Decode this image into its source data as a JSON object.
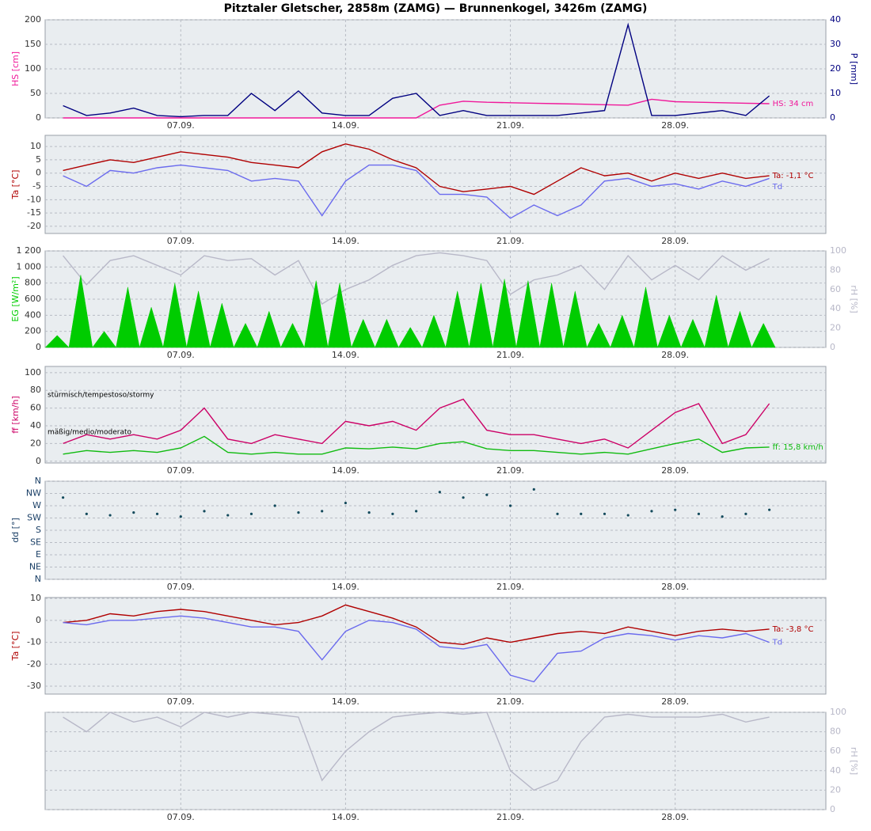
{
  "title": "Pitztaler Gletscher, 2858m (ZAMG) — Brunnenkogel, 3426m (ZAMG)",
  "chart_data": [
    {
      "type": "line",
      "xlim": [
        1.24,
        34.4
      ],
      "xticks": [
        {
          "value": 7,
          "label": "07.09."
        },
        {
          "value": 14,
          "label": "14.09."
        },
        {
          "value": 21,
          "label": "21.09."
        },
        {
          "value": 28,
          "label": "28.09."
        }
      ],
      "x": [
        2,
        3,
        4,
        5,
        6,
        7,
        8,
        9,
        10,
        11,
        12,
        13,
        14,
        15,
        16,
        17,
        18,
        19,
        20,
        21,
        22,
        23,
        24,
        25,
        26,
        27,
        28,
        29,
        30,
        31,
        32
      ],
      "ylabel": "HS [cm]",
      "ylim": [
        0,
        200
      ],
      "yticks": [
        0,
        50,
        100,
        150,
        200
      ],
      "y2label": "P [mm]",
      "y2lim": [
        0,
        40
      ],
      "y2ticks": [
        0,
        10,
        20,
        30,
        40
      ],
      "grid": true,
      "series": [
        {
          "name": "HS: 34 cm",
          "color": "#f0189a",
          "values": [
            0,
            0,
            0,
            0,
            0,
            0,
            0,
            0,
            0,
            0,
            0,
            0,
            0,
            0,
            0,
            0,
            26,
            34,
            32,
            31,
            30,
            29,
            28,
            27,
            26,
            38,
            33,
            32,
            31,
            30,
            29
          ]
        },
        {
          "color": "#000080",
          "axis": "y2",
          "values": [
            5,
            1,
            2,
            4,
            1,
            0.5,
            1,
            1,
            10,
            3,
            11,
            2,
            1,
            1,
            8,
            10,
            1,
            3,
            1,
            1,
            1,
            1,
            2,
            3,
            38,
            1,
            1,
            2,
            3,
            1,
            9
          ]
        }
      ]
    },
    {
      "type": "line",
      "xlim": [
        1.24,
        34.4
      ],
      "xticks": [
        {
          "value": 7,
          "label": "07.09."
        },
        {
          "value": 14,
          "label": "14.09."
        },
        {
          "value": 21,
          "label": "21.09."
        },
        {
          "value": 28,
          "label": "28.09."
        }
      ],
      "x": [
        2,
        3,
        4,
        5,
        6,
        7,
        8,
        9,
        10,
        11,
        12,
        13,
        14,
        15,
        16,
        17,
        18,
        19,
        20,
        21,
        22,
        23,
        24,
        25,
        26,
        27,
        28,
        29,
        30,
        31,
        32
      ],
      "ylabel": "Ta [°C]",
      "ylim": [
        -22.7,
        14.2
      ],
      "yticks": [
        -20,
        -15,
        -10,
        -5,
        0,
        5,
        10
      ],
      "grid": true,
      "series": [
        {
          "name": "Ta: -1,1 °C",
          "color": "#b00000",
          "values": [
            1,
            3,
            5,
            4,
            6,
            8,
            7,
            6,
            4,
            3,
            2,
            8,
            11,
            9,
            5,
            2,
            -5,
            -7,
            -6,
            -5,
            -8,
            -3,
            2,
            -1,
            0,
            -3,
            0,
            -2,
            0,
            -2,
            -1
          ]
        },
        {
          "name": "Td",
          "color": "#6a6aee",
          "values": [
            -1,
            -5,
            1,
            0,
            2,
            3,
            2,
            1,
            -3,
            -2,
            -3,
            -16,
            -3,
            3,
            3,
            1,
            -8,
            -8,
            -9,
            -17,
            -12,
            -16,
            -12,
            -3,
            -2,
            -5,
            -4,
            -6,
            -3,
            -5,
            -2
          ]
        }
      ]
    },
    {
      "type": "line",
      "xlim": [
        1.24,
        34.4
      ],
      "xticks": [
        {
          "value": 7,
          "label": "07.09."
        },
        {
          "value": 14,
          "label": "14.09."
        },
        {
          "value": 21,
          "label": "21.09."
        },
        {
          "value": 28,
          "label": "28.09."
        }
      ],
      "x": [
        2,
        3,
        4,
        5,
        6,
        7,
        8,
        9,
        10,
        11,
        12,
        13,
        14,
        15,
        16,
        17,
        18,
        19,
        20,
        21,
        22,
        23,
        24,
        25,
        26,
        27,
        28,
        29,
        30,
        31,
        32
      ],
      "ylabel": "EG [W/m²]",
      "ylim": [
        0,
        1200
      ],
      "yticks": [
        0,
        200,
        400,
        600,
        800,
        {
          "value": 1000,
          "label": "1 000"
        },
        {
          "value": 1200,
          "label": "1 200"
        }
      ],
      "y2label": "rH [%]",
      "y2lim": [
        0,
        100
      ],
      "y2ticks": [
        0,
        20,
        40,
        60,
        80,
        100
      ],
      "grid": true,
      "series": [
        {
          "color": "#b8b8c8",
          "axis": "y2",
          "values": [
            95,
            65,
            90,
            95,
            85,
            75,
            95,
            90,
            92,
            75,
            90,
            45,
            60,
            70,
            85,
            95,
            98,
            95,
            90,
            55,
            70,
            75,
            85,
            60,
            95,
            70,
            85,
            70,
            95,
            80,
            92
          ]
        },
        {
          "type": "area",
          "color": "#00cc00",
          "x": [
            1.25,
            1.75,
            2.25,
            2.75,
            3.25,
            3.75,
            4.25,
            4.75,
            5.25,
            5.75,
            6.25,
            6.75,
            7.25,
            7.75,
            8.25,
            8.75,
            9.25,
            9.75,
            10.25,
            10.75,
            11.25,
            11.75,
            12.25,
            12.75,
            13.25,
            13.75,
            14.25,
            14.75,
            15.25,
            15.75,
            16.25,
            16.75,
            17.25,
            17.75,
            18.25,
            18.75,
            19.25,
            19.75,
            20.25,
            20.75,
            21.25,
            21.75,
            22.25,
            22.75,
            23.25,
            23.75,
            24.25,
            24.75,
            25.25,
            25.75,
            26.25,
            26.75,
            27.25,
            27.75,
            28.25,
            28.75,
            29.25,
            29.75,
            30.25,
            30.75,
            31.25,
            31.75,
            32.25
          ],
          "values": [
            0,
            150,
            0,
            900,
            0,
            200,
            0,
            750,
            0,
            500,
            0,
            800,
            0,
            700,
            0,
            550,
            0,
            300,
            0,
            450,
            0,
            300,
            0,
            830,
            0,
            800,
            0,
            350,
            0,
            350,
            0,
            250,
            0,
            400,
            0,
            700,
            0,
            800,
            0,
            850,
            0,
            830,
            0,
            800,
            0,
            700,
            0,
            300,
            0,
            400,
            0,
            750,
            0,
            400,
            0,
            350,
            0,
            650,
            0,
            450,
            0,
            300,
            0
          ]
        }
      ]
    },
    {
      "type": "line",
      "xlim": [
        1.24,
        34.4
      ],
      "xticks": [
        {
          "value": 7,
          "label": "07.09."
        },
        {
          "value": 14,
          "label": "14.09."
        },
        {
          "value": 21,
          "label": "21.09."
        },
        {
          "value": 28,
          "label": "28.09."
        }
      ],
      "x": [
        2,
        3,
        4,
        5,
        6,
        7,
        8,
        9,
        10,
        11,
        12,
        13,
        14,
        15,
        16,
        17,
        18,
        19,
        20,
        21,
        22,
        23,
        24,
        25,
        26,
        27,
        28,
        29,
        30,
        31,
        32
      ],
      "ylabel": "ff [km/h]",
      "ylim": [
        -2,
        107
      ],
      "yticks": [
        0,
        20,
        40,
        60,
        80,
        100
      ],
      "grid": true,
      "annotations": [
        "stürmisch/tempestoso/stormy",
        "mäßig/medio/moderato"
      ],
      "series": [
        {
          "color": "#cc0066",
          "values": [
            20,
            30,
            25,
            30,
            25,
            35,
            60,
            25,
            20,
            30,
            25,
            20,
            45,
            40,
            45,
            35,
            60,
            70,
            35,
            30,
            30,
            25,
            20,
            25,
            15,
            35,
            55,
            65,
            20,
            30,
            65
          ]
        },
        {
          "name": "ff: 15,8 km/h",
          "color": "#10bb10",
          "values": [
            8,
            12,
            10,
            12,
            10,
            15,
            28,
            10,
            8,
            10,
            8,
            8,
            15,
            14,
            16,
            14,
            20,
            22,
            14,
            12,
            12,
            10,
            8,
            10,
            8,
            14,
            20,
            25,
            10,
            15,
            16
          ]
        }
      ]
    },
    {
      "type": "scatter",
      "xlim": [
        1.24,
        34.4
      ],
      "xticks": [
        {
          "value": 7,
          "label": "07.09."
        },
        {
          "value": 14,
          "label": "14.09."
        },
        {
          "value": 21,
          "label": "21.09."
        },
        {
          "value": 28,
          "label": "28.09."
        }
      ],
      "x": [
        2,
        3,
        4,
        5,
        6,
        7,
        8,
        9,
        10,
        11,
        12,
        13,
        14,
        15,
        16,
        17,
        18,
        19,
        20,
        21,
        22,
        23,
        24,
        25,
        26,
        27,
        28,
        29,
        30,
        31,
        32
      ],
      "ylabel": "dd [°]",
      "ylim": [
        0,
        360
      ],
      "yticks": [
        {
          "value": 0,
          "label": "N"
        },
        {
          "value": 45,
          "label": "NE"
        },
        {
          "value": 90,
          "label": "E"
        },
        {
          "value": 135,
          "label": "SE"
        },
        {
          "value": 180,
          "label": "S"
        },
        {
          "value": 225,
          "label": "SW"
        },
        {
          "value": 270,
          "label": "W"
        },
        {
          "value": 315,
          "label": "NW"
        },
        {
          "value": 360,
          "label": "N"
        }
      ],
      "grid": true,
      "series": [
        {
          "color": "#134a5c",
          "values": [
            300,
            240,
            235,
            245,
            240,
            230,
            250,
            235,
            240,
            270,
            245,
            250,
            280,
            245,
            240,
            250,
            320,
            300,
            310,
            270,
            330,
            240,
            240,
            240,
            235,
            250,
            255,
            240,
            230,
            240,
            255
          ]
        }
      ]
    },
    {
      "type": "line",
      "xlim": [
        1.24,
        34.4
      ],
      "xticks": [
        {
          "value": 7,
          "label": "07.09."
        },
        {
          "value": 14,
          "label": "14.09."
        },
        {
          "value": 21,
          "label": "21.09."
        },
        {
          "value": 28,
          "label": "28.09."
        }
      ],
      "x": [
        2,
        3,
        4,
        5,
        6,
        7,
        8,
        9,
        10,
        11,
        12,
        13,
        14,
        15,
        16,
        17,
        18,
        19,
        20,
        21,
        22,
        23,
        24,
        25,
        26,
        27,
        28,
        29,
        30,
        31,
        32
      ],
      "ylabel": "Ta [°C]",
      "ylim": [
        -33.6,
        10.4
      ],
      "yticks": [
        -30,
        -20,
        -10,
        0,
        10
      ],
      "grid": true,
      "series": [
        {
          "name": "Ta: -3,8 °C",
          "color": "#b00000",
          "values": [
            -1,
            0,
            3,
            2,
            4,
            5,
            4,
            2,
            0,
            -2,
            -1,
            2,
            7,
            4,
            1,
            -3,
            -10,
            -11,
            -8,
            -10,
            -8,
            -6,
            -5,
            -6,
            -3,
            -5,
            -7,
            -5,
            -4,
            -5,
            -4
          ]
        },
        {
          "name": "Td",
          "color": "#6a6aee",
          "values": [
            -1,
            -2,
            0,
            0,
            1,
            2,
            1,
            -1,
            -3,
            -3,
            -5,
            -18,
            -5,
            0,
            -1,
            -4,
            -12,
            -13,
            -11,
            -25,
            -28,
            -15,
            -14,
            -8,
            -6,
            -7,
            -9,
            -7,
            -8,
            -6,
            -10
          ]
        }
      ]
    },
    {
      "type": "line",
      "xlim": [
        1.24,
        34.4
      ],
      "xticks": [
        {
          "value": 7,
          "label": "07.09."
        },
        {
          "value": 14,
          "label": "14.09."
        },
        {
          "value": 21,
          "label": "21.09."
        },
        {
          "value": 28,
          "label": "28.09."
        }
      ],
      "x": [
        2,
        3,
        4,
        5,
        6,
        7,
        8,
        9,
        10,
        11,
        12,
        13,
        14,
        15,
        16,
        17,
        18,
        19,
        20,
        21,
        22,
        23,
        24,
        25,
        26,
        27,
        28,
        29,
        30,
        31,
        32
      ],
      "y2label": "rH [%]",
      "y2lim": [
        0,
        100
      ],
      "y2ticks": [
        0,
        20,
        40,
        60,
        80,
        100
      ],
      "grid": true,
      "series": [
        {
          "color": "#b8b8c8",
          "axis": "y2",
          "values": [
            95,
            80,
            100,
            90,
            95,
            85,
            100,
            95,
            100,
            98,
            95,
            30,
            60,
            80,
            95,
            98,
            100,
            98,
            100,
            40,
            20,
            30,
            70,
            95,
            98,
            95,
            95,
            95,
            98,
            90,
            95
          ]
        }
      ]
    }
  ]
}
